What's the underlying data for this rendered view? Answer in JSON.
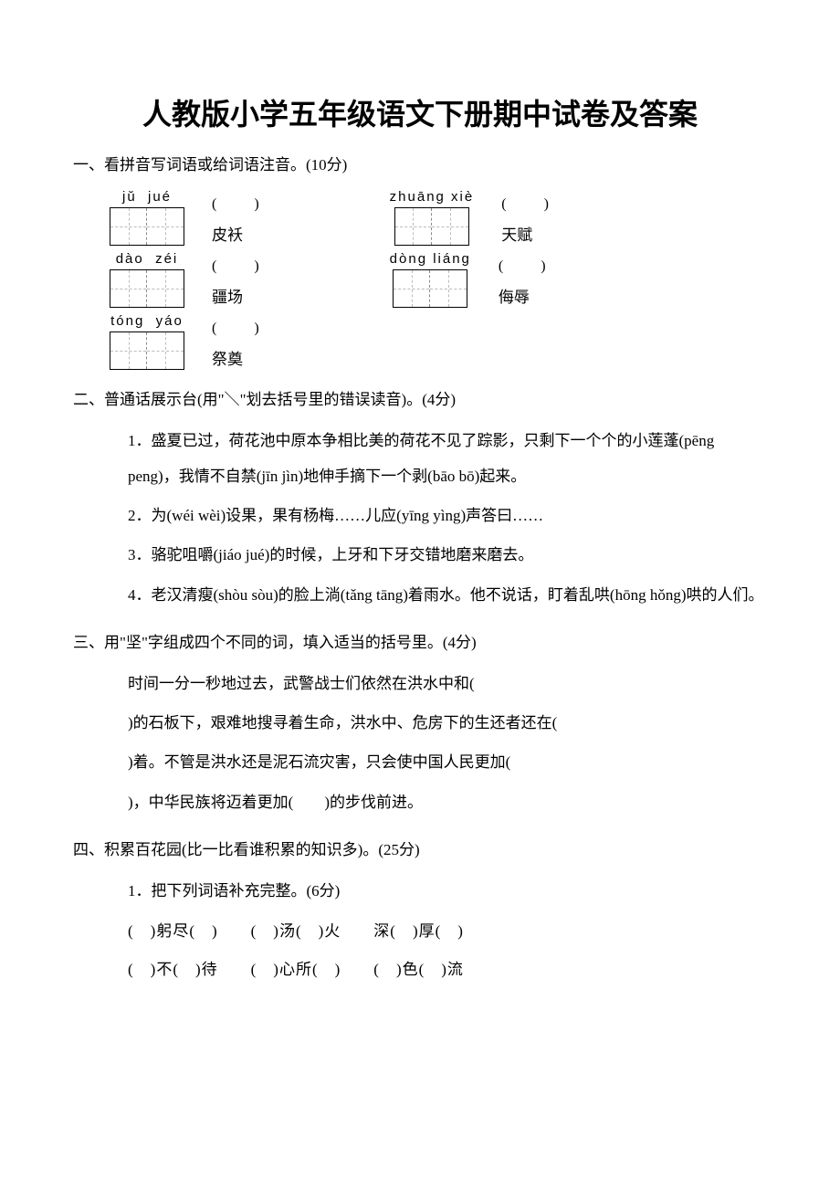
{
  "title": "人教版小学五年级语文下册期中试卷及答案",
  "section1": {
    "heading": "一、看拼音写词语或给词语注音。(10分)",
    "rows": [
      {
        "left": {
          "pinyin": "jǔ  jué",
          "cells": 2,
          "paren": "(　　)",
          "word": "皮袄"
        },
        "right": {
          "pinyin": "zhuāng xiè",
          "cells": 2,
          "paren": "(　　)",
          "word": "天赋"
        }
      },
      {
        "left": {
          "pinyin": "dào  zéi",
          "cells": 2,
          "paren": "(　　)",
          "word": "疆场"
        },
        "right": {
          "pinyin": "dòng liáng",
          "cells": 2,
          "paren": "(　　)",
          "word": "侮辱"
        }
      },
      {
        "left": {
          "pinyin": "tóng  yáo",
          "cells": 2,
          "paren": "(　　)",
          "word": "祭奠"
        },
        "right": null
      }
    ]
  },
  "section2": {
    "heading": "二、普通话展示台(用\"＼\"划去括号里的错误读音)。(4分)",
    "items": [
      "1．盛夏已过，荷花池中原本争相比美的荷花不见了踪影，只剩下一个个的小莲蓬(pēng peng)，我情不自禁(jīn jìn)地伸手摘下一个剥(bāo bō)起来。",
      "2．为(wéi wèi)设果，果有杨梅……儿应(yīng yìng)声答曰……",
      "3．骆驼咀嚼(jiáo jué)的时候，上牙和下牙交错地磨来磨去。",
      "4．老汉清瘦(shòu sòu)的脸上淌(tǎng tāng)着雨水。他不说话，盯着乱哄(hōng hǒng)哄的人们。"
    ]
  },
  "section3": {
    "heading": "三、用\"坚\"字组成四个不同的词，填入适当的括号里。(4分)",
    "lines": [
      "时间一分一秒地过去，武警战士们依然在洪水中和(",
      ")的石板下，艰难地搜寻着生命，洪水中、危房下的生还者还在(",
      ")着。不管是洪水还是泥石流灾害，只会使中国人民更加(",
      ")，中华民族将迈着更加(　　)的步伐前进。"
    ]
  },
  "section4": {
    "heading": "四、积累百花园(比一比看谁积累的知识多)。(25分)",
    "sub": "1．把下列词语补充完整。(6分)",
    "rows": [
      "(　)躬尽(　)　　(　)汤(　)火　　深(　)厚(　)",
      "(　)不(　)待　　(　)心所(　)　　(　)色(　)流"
    ]
  }
}
